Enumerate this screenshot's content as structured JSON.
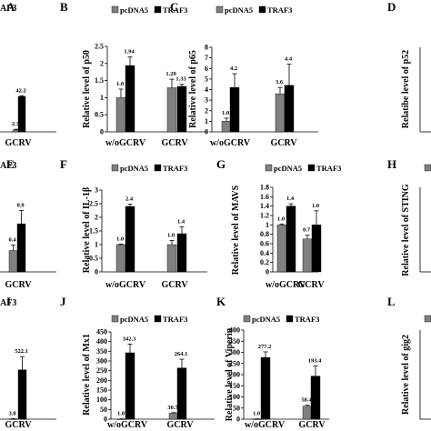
{
  "colors": {
    "pcDNA5": "#808080",
    "TRAF3": "#000000",
    "axis": "#000000"
  },
  "chart_data": [
    {
      "panel": "A",
      "type": "bar",
      "title_fragment": "AF3",
      "categories": [
        "GCRV"
      ],
      "ylabel": "",
      "series": [
        {
          "name": "pcDNA5",
          "values": [
            2.3
          ]
        },
        {
          "name": "TRAF3",
          "values": [
            42.2
          ]
        }
      ],
      "errors": [
        [
          0.8
        ],
        [
          0.9
        ]
      ],
      "labels": [
        [
          "2.3"
        ],
        [
          "42.2"
        ]
      ],
      "ylim": [
        0,
        90
      ],
      "yticks": [],
      "legend": false
    },
    {
      "panel": "B",
      "type": "bar",
      "categories": [
        "w/oGCRV",
        "GCRV"
      ],
      "ylabel": "Relative level of p50",
      "series": [
        {
          "name": "pcDNA5",
          "values": [
            1.0,
            1.29
          ]
        },
        {
          "name": "TRAF3",
          "values": [
            1.94,
            1.33
          ]
        }
      ],
      "errors": [
        [
          0.25,
          0.25
        ],
        [
          0.25,
          0.06
        ]
      ],
      "labels": [
        [
          "1.0",
          "1.29"
        ],
        [
          "1.94",
          "1.33"
        ]
      ],
      "ylim": [
        0,
        2.5
      ],
      "yticks": [
        "0",
        "0.5",
        "1",
        "1.5",
        "2",
        "2.5"
      ],
      "legend": true
    },
    {
      "panel": "C",
      "type": "bar",
      "categories": [
        "w/oGCRV",
        "GCRV"
      ],
      "ylabel": "Relative level of p65",
      "series": [
        {
          "name": "pcDNA5",
          "values": [
            1.0,
            3.6
          ]
        },
        {
          "name": "TRAF3",
          "values": [
            4.2,
            4.4
          ]
        }
      ],
      "errors": [
        [
          0.3,
          0.6
        ],
        [
          1.3,
          2.0
        ]
      ],
      "labels": [
        [
          "1.0",
          "3.6"
        ],
        [
          "4.2",
          "4.4"
        ]
      ],
      "ylim": [
        0,
        8
      ],
      "yticks": [
        "0",
        "1",
        "2",
        "3",
        "4",
        "5",
        "6",
        "7",
        "8"
      ],
      "legend": true
    },
    {
      "panel": "D",
      "type": "bar",
      "categories": [],
      "ylabel": "Relatibe level of p52",
      "series": [],
      "ylim": [
        0,
        1
      ],
      "yticks": [],
      "legend": false
    },
    {
      "panel": "E",
      "type": "bar",
      "title_fragment": "AF3",
      "categories": [
        "GCRV"
      ],
      "ylabel": "",
      "series": [
        {
          "name": "pcDNA5",
          "values": [
            0.4
          ]
        },
        {
          "name": "TRAF3",
          "values": [
            0.9
          ]
        }
      ],
      "errors": [
        [
          0.1
        ],
        [
          0.25
        ]
      ],
      "labels": [
        [
          "0.4"
        ],
        [
          "0.9"
        ]
      ],
      "ylim": [
        0,
        1.6
      ],
      "yticks": [],
      "legend": false
    },
    {
      "panel": "F",
      "type": "bar",
      "categories": [
        "w/oGCRV",
        "GCRV"
      ],
      "ylabel": "Relative level of IL-1β",
      "series": [
        {
          "name": "pcDNA5",
          "values": [
            1.0,
            1.0
          ]
        },
        {
          "name": "TRAF3",
          "values": [
            2.4,
            1.4
          ]
        }
      ],
      "errors": [
        [
          0.02,
          0.15
        ],
        [
          0.08,
          0.25
        ]
      ],
      "labels": [
        [
          "1.0",
          "1.0"
        ],
        [
          "2.4",
          "1.4"
        ]
      ],
      "ylim": [
        0,
        3
      ],
      "yticks": [
        "0",
        "0.5",
        "1",
        "1.5",
        "2",
        "2.5",
        "3"
      ],
      "legend": true
    },
    {
      "panel": "G",
      "type": "bar",
      "categories": [
        "w/oGCRV",
        "GCRV"
      ],
      "ylabel": "Relative level of MAVS",
      "series": [
        {
          "name": "pcDNA5",
          "values": [
            1.0,
            0.7
          ]
        },
        {
          "name": "TRAF3",
          "values": [
            1.4,
            1.0
          ]
        }
      ],
      "errors": [
        [
          0.02,
          0.08
        ],
        [
          0.05,
          0.3
        ]
      ],
      "labels": [
        [
          "1.0",
          "0.7"
        ],
        [
          "1.4",
          "1.0"
        ]
      ],
      "ylim": [
        0,
        1.8
      ],
      "yticks": [
        "0",
        "0.2",
        "0.4",
        "0.6",
        "0.8",
        "1",
        "1.2",
        "1.4",
        "1.6",
        "1.8"
      ],
      "legend": true
    },
    {
      "panel": "H",
      "type": "bar",
      "categories": [],
      "ylabel": "Relative level of STING",
      "series": [],
      "ylim": [
        0,
        1
      ],
      "yticks": [],
      "legend": false
    },
    {
      "panel": "I",
      "type": "bar",
      "title_fragment": "AF3",
      "categories": [
        "GCRV"
      ],
      "ylabel": "",
      "series": [
        {
          "name": "pcDNA5",
          "values": [
            3.8
          ]
        },
        {
          "name": "TRAF3",
          "values": [
            522.1
          ]
        }
      ],
      "errors": [
        [
          1
        ],
        [
          140
        ]
      ],
      "labels": [
        [
          "3.8"
        ],
        [
          "522.1"
        ]
      ],
      "ylim": [
        0,
        1000
      ],
      "yticks": [],
      "legend": false
    },
    {
      "panel": "J",
      "type": "bar",
      "categories": [
        "w/oGCRV",
        "GCRV"
      ],
      "ylabel": "Relative level of Mx1",
      "series": [
        {
          "name": "pcDNA5",
          "values": [
            1.0,
            30.7
          ]
        },
        {
          "name": "TRAF3",
          "values": [
            342.3,
            264.1
          ]
        }
      ],
      "errors": [
        [
          0.5,
          3
        ],
        [
          45,
          45
        ]
      ],
      "labels": [
        [
          "1.0",
          "30.7"
        ],
        [
          "342.3",
          "264.1"
        ]
      ],
      "ylim": [
        0,
        450
      ],
      "yticks": [
        "0",
        "50",
        "100",
        "150",
        "200",
        "250",
        "300",
        "350",
        "400",
        "450"
      ],
      "legend": true
    },
    {
      "panel": "K",
      "type": "bar",
      "categories": [
        "w/oGCRV",
        "GCRV"
      ],
      "ylabel": "Relative level of Viperin",
      "series": [
        {
          "name": "pcDNA5",
          "values": [
            1.0,
            58.4
          ]
        },
        {
          "name": "TRAF3",
          "values": [
            277.2,
            193.4
          ]
        }
      ],
      "errors": [
        [
          0.5,
          4
        ],
        [
          25,
          45
        ]
      ],
      "labels": [
        [
          "1.0",
          "58.4"
        ],
        [
          "277.2",
          "193.4"
        ]
      ],
      "ylim": [
        0,
        400
      ],
      "yticks": [
        "0",
        "50",
        "100",
        "150",
        "200",
        "250",
        "300",
        "350",
        "400"
      ],
      "legend": true
    },
    {
      "panel": "L",
      "type": "bar",
      "categories": [],
      "ylabel": "Relative level of gig2",
      "series": [],
      "ylim": [
        0,
        1
      ],
      "yticks": [],
      "legend": false
    }
  ]
}
